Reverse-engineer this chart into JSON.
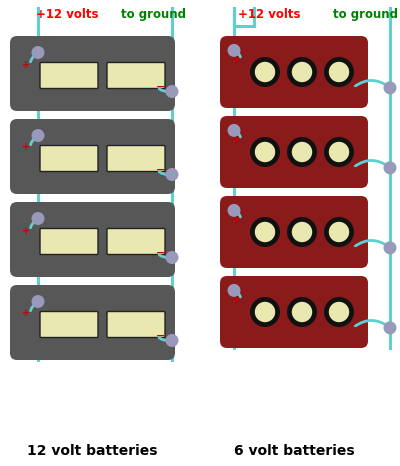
{
  "bg_color": "#ffffff",
  "left_label": "12 volt batteries",
  "right_label": "6 volt batteries",
  "top_left_red": "+12 volts",
  "top_left_green": "to ground",
  "top_right_red": "+12 volts",
  "top_right_green": "to ground",
  "battery12_color": "#575757",
  "battery6_color": "#8b1a1a",
  "cell_color": "#e8e8b0",
  "wire_color": "#5fcfcf",
  "connector_color": "#9999bb",
  "plus_color": "#cc0000",
  "minus_color": "#cc0000"
}
